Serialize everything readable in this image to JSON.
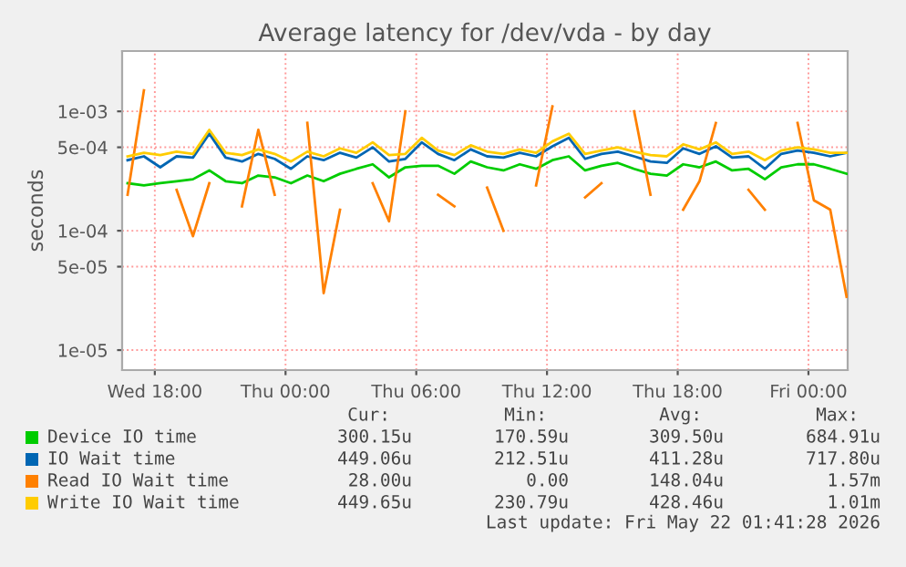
{
  "chart_data": {
    "type": "line",
    "title": "Average latency for /dev/vda - by day",
    "ylabel": "seconds",
    "x": [
      "2026-05-20T16:45",
      "2026-05-20T17:30",
      "2026-05-20T18:15",
      "2026-05-20T19:00",
      "2026-05-20T19:45",
      "2026-05-20T20:30",
      "2026-05-20T21:15",
      "2026-05-20T22:00",
      "2026-05-20T22:45",
      "2026-05-20T23:30",
      "2026-05-21T00:15",
      "2026-05-21T01:00",
      "2026-05-21T01:45",
      "2026-05-21T02:30",
      "2026-05-21T03:15",
      "2026-05-21T04:00",
      "2026-05-21T04:45",
      "2026-05-21T05:30",
      "2026-05-21T06:15",
      "2026-05-21T07:00",
      "2026-05-21T07:45",
      "2026-05-21T08:30",
      "2026-05-21T09:15",
      "2026-05-21T10:00",
      "2026-05-21T10:45",
      "2026-05-21T11:30",
      "2026-05-21T12:15",
      "2026-05-21T13:00",
      "2026-05-21T13:45",
      "2026-05-21T14:30",
      "2026-05-21T15:15",
      "2026-05-21T16:00",
      "2026-05-21T16:45",
      "2026-05-21T17:30",
      "2026-05-21T18:15",
      "2026-05-21T19:00",
      "2026-05-21T19:45",
      "2026-05-21T20:30",
      "2026-05-21T21:15",
      "2026-05-21T22:00",
      "2026-05-21T22:45",
      "2026-05-21T23:30",
      "2026-05-22T00:15",
      "2026-05-22T01:00",
      "2026-05-22T01:45"
    ],
    "series": [
      {
        "name": "Device IO time",
        "color": "#00cc00",
        "values": [
          0.00025,
          0.00024,
          0.00025,
          0.00026,
          0.00027,
          0.00032,
          0.00026,
          0.00025,
          0.00029,
          0.00028,
          0.00025,
          0.00029,
          0.00026,
          0.0003,
          0.00033,
          0.00036,
          0.00028,
          0.00034,
          0.00035,
          0.00035,
          0.0003,
          0.00038,
          0.00034,
          0.00032,
          0.00036,
          0.00033,
          0.00039,
          0.00042,
          0.00032,
          0.00035,
          0.00037,
          0.00033,
          0.0003,
          0.00029,
          0.00036,
          0.00034,
          0.00038,
          0.00032,
          0.00033,
          0.00027,
          0.00034,
          0.00036,
          0.00036,
          0.00033,
          0.0003
        ]
      },
      {
        "name": "IO Wait time",
        "color": "#0066b3",
        "values": [
          0.00039,
          0.00042,
          0.00034,
          0.00042,
          0.00041,
          0.00065,
          0.00041,
          0.00038,
          0.00044,
          0.0004,
          0.00033,
          0.00042,
          0.00039,
          0.00045,
          0.00041,
          0.0005,
          0.00038,
          0.0004,
          0.00055,
          0.00044,
          0.00039,
          0.00048,
          0.00042,
          0.00041,
          0.00045,
          0.00042,
          0.00051,
          0.0006,
          0.0004,
          0.00044,
          0.00046,
          0.00042,
          0.00038,
          0.00037,
          0.00049,
          0.00044,
          0.00051,
          0.00041,
          0.00042,
          0.00033,
          0.00044,
          0.00047,
          0.00045,
          0.00042,
          0.00045
        ]
      },
      {
        "name": "Read IO Wait time",
        "color": "#ff8000",
        "values": [
          0.0002,
          0.0015,
          null,
          0.00022,
          9e-05,
          0.00025,
          null,
          0.00016,
          0.0007,
          0.0002,
          null,
          0.0008,
          3e-05,
          0.00015,
          null,
          0.00025,
          0.00012,
          0.001,
          null,
          0.0002,
          0.00016,
          null,
          0.00023,
          0.0001,
          null,
          0.00024,
          0.0011,
          null,
          0.00019,
          0.00025,
          null,
          0.001,
          0.0002,
          null,
          0.00015,
          0.00026,
          0.0008,
          null,
          0.00022,
          0.00015,
          null,
          0.0008,
          0.00018,
          0.00015,
          2.8e-05
        ]
      },
      {
        "name": "Write IO Wait time",
        "color": "#ffcc00",
        "values": [
          0.00042,
          0.00045,
          0.00043,
          0.00046,
          0.00044,
          0.0007,
          0.00045,
          0.00043,
          0.00048,
          0.00044,
          0.00038,
          0.00046,
          0.00042,
          0.00049,
          0.00045,
          0.00055,
          0.00043,
          0.00044,
          0.0006,
          0.00047,
          0.00043,
          0.00052,
          0.00046,
          0.00044,
          0.00048,
          0.00045,
          0.00056,
          0.00065,
          0.00044,
          0.00047,
          0.0005,
          0.00046,
          0.00043,
          0.00042,
          0.00053,
          0.00048,
          0.00055,
          0.00044,
          0.00046,
          0.00039,
          0.00047,
          0.0005,
          0.00048,
          0.00045,
          0.00045
        ]
      }
    ],
    "log": "y",
    "ylim": [
      6.8e-06,
      0.0032
    ],
    "yticks": [
      {
        "value": 1e-05,
        "label": "1e-05"
      },
      {
        "value": 5e-05,
        "label": "5e-05"
      },
      {
        "value": 0.0001,
        "label": "1e-04"
      },
      {
        "value": 0.0005,
        "label": "5e-04"
      },
      {
        "value": 0.001,
        "label": "1e-03"
      }
    ],
    "xlim": [
      "2026-05-20T16:30",
      "2026-05-22T01:48"
    ],
    "xticks": [
      {
        "value": "2026-05-20T18:00",
        "label": "Wed 18:00"
      },
      {
        "value": "2026-05-21T00:00",
        "label": "Thu 00:00"
      },
      {
        "value": "2026-05-21T06:00",
        "label": "Thu 06:00"
      },
      {
        "value": "2026-05-21T12:00",
        "label": "Thu 12:00"
      },
      {
        "value": "2026-05-21T18:00",
        "label": "Thu 18:00"
      },
      {
        "value": "2026-05-22T00:00",
        "label": "Fri 00:00"
      }
    ],
    "grid": true,
    "legend": "bottom",
    "marker": "none",
    "line_style": "solid",
    "annotations": [
      "Cur:",
      "Min:",
      "Avg:",
      "Max:",
      "300.15u",
      "170.59u",
      "309.50u",
      "684.91u",
      "449.06u",
      "212.51u",
      "411.28u",
      "717.80u",
      "28.00u",
      "0.00",
      "148.04u",
      "1.57m",
      "449.65u",
      "230.79u",
      "428.46u",
      "1.01m",
      "Last update: Fri May 22 01:41:28 2026"
    ]
  }
}
